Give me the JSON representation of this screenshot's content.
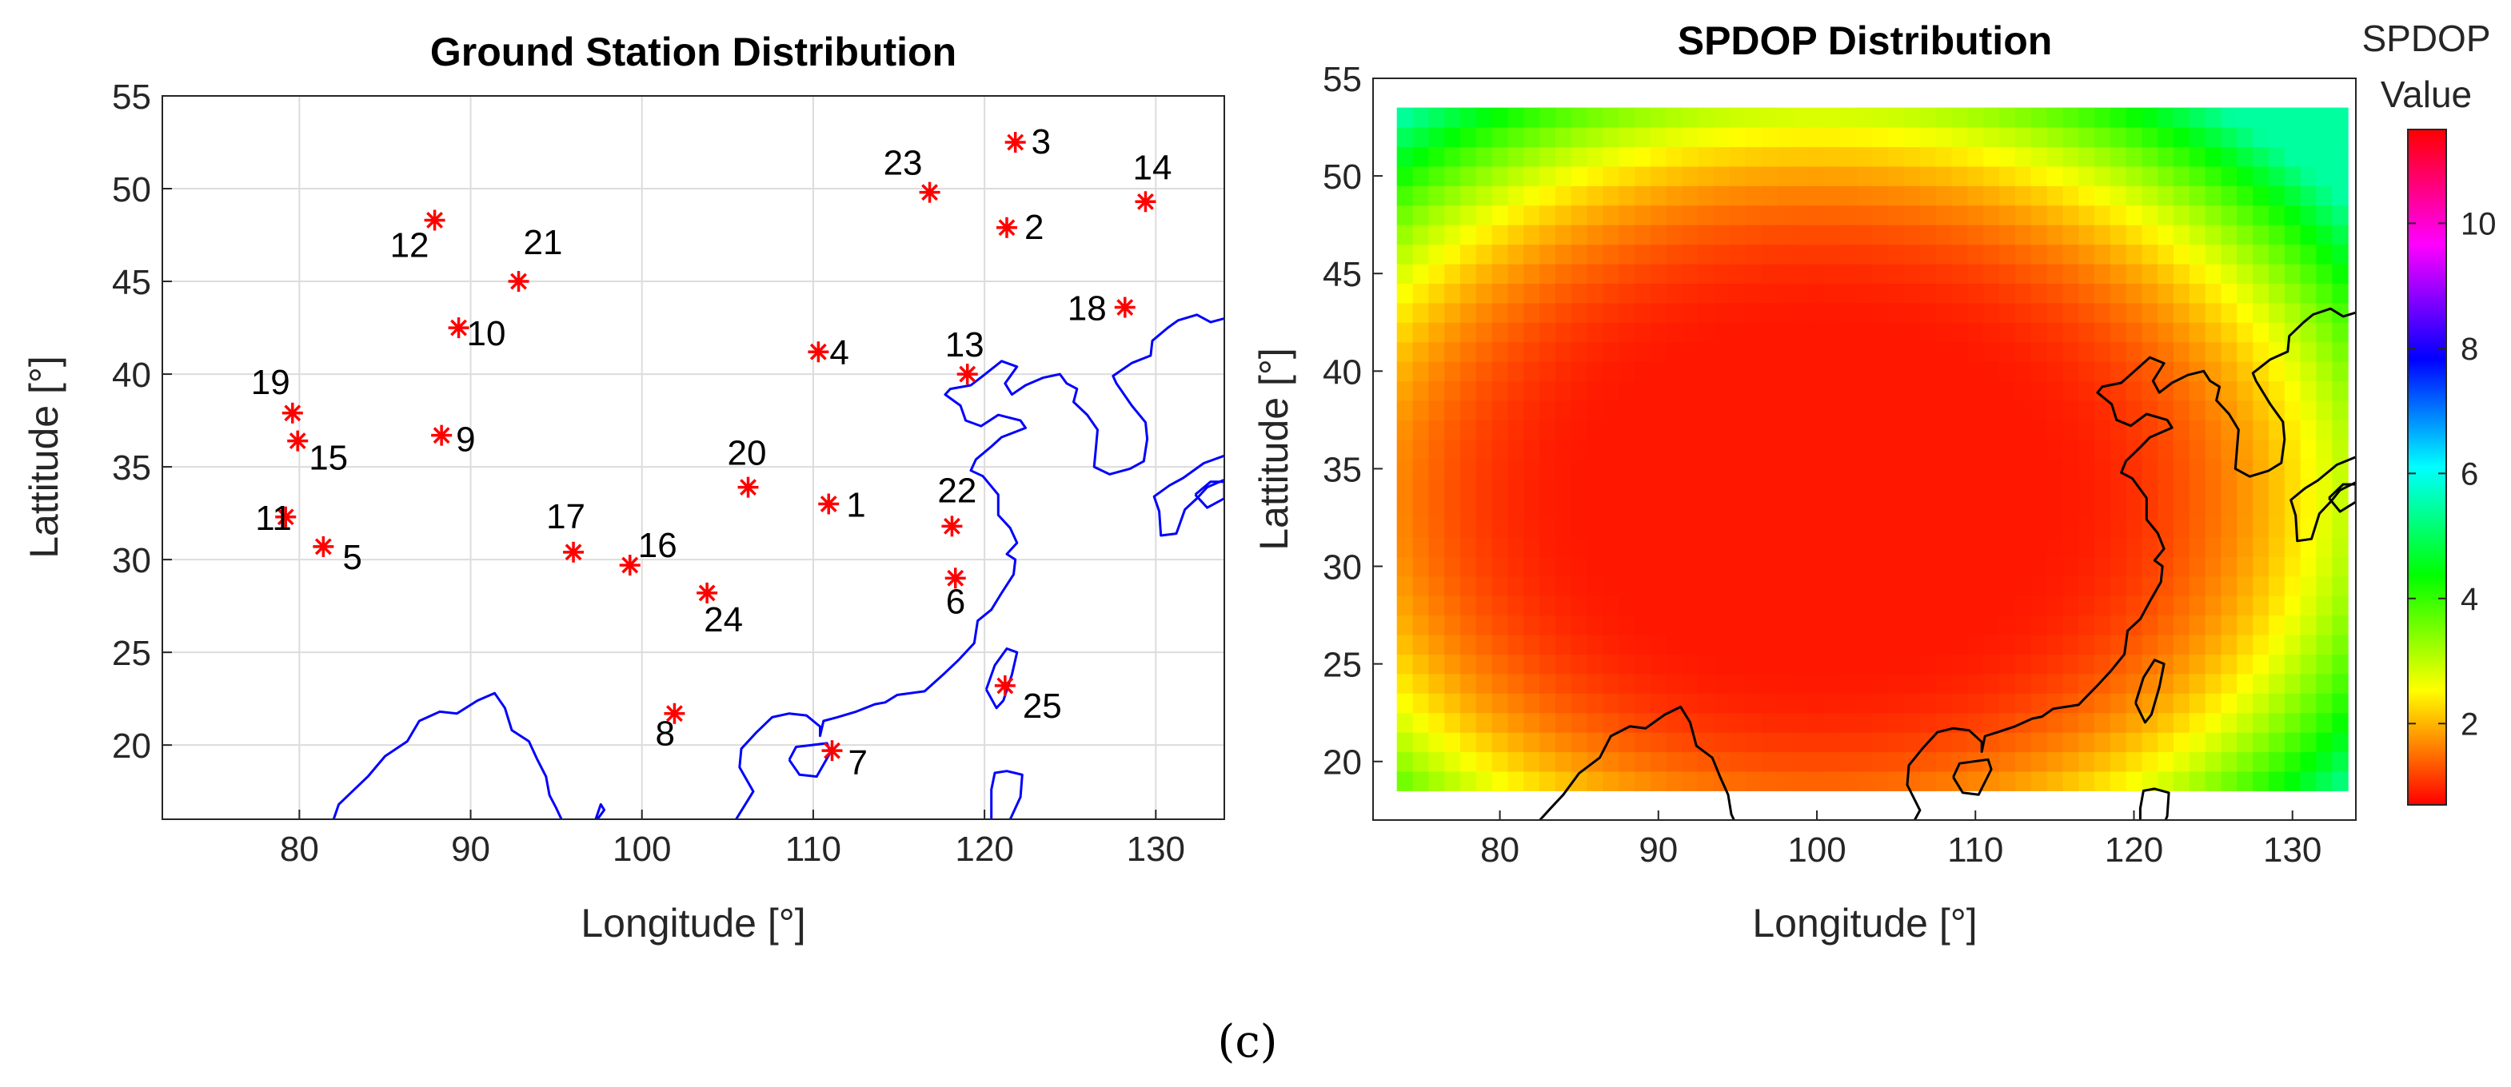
{
  "caption": "(c)",
  "chart_data": [
    {
      "type": "scatter",
      "title": "Ground Station Distribution",
      "xlabel": "Longitude [°]",
      "ylabel": "Lattitude [°]",
      "xlim": [
        72,
        134
      ],
      "ylim": [
        16,
        55
      ],
      "xticks": [
        80,
        90,
        100,
        110,
        120,
        130
      ],
      "yticks": [
        20,
        25,
        30,
        35,
        40,
        45,
        50,
        55
      ],
      "grid": true,
      "marker": "*",
      "marker_color": "#ff0000",
      "coastline_color": "#0000ff",
      "stations": [
        {
          "label": "1",
          "lon": 110.9,
          "lat": 33.0
        },
        {
          "label": "2",
          "lon": 121.3,
          "lat": 47.9
        },
        {
          "label": "3",
          "lon": 121.8,
          "lat": 52.5
        },
        {
          "label": "4",
          "lon": 110.3,
          "lat": 41.2
        },
        {
          "label": "5",
          "lon": 81.4,
          "lat": 30.7
        },
        {
          "label": "6",
          "lon": 118.3,
          "lat": 29.0
        },
        {
          "label": "7",
          "lon": 111.1,
          "lat": 19.7
        },
        {
          "label": "8",
          "lon": 101.9,
          "lat": 21.7
        },
        {
          "label": "9",
          "lon": 88.3,
          "lat": 36.7
        },
        {
          "label": "10",
          "lon": 89.3,
          "lat": 42.5
        },
        {
          "label": "11",
          "lon": 79.2,
          "lat": 32.3
        },
        {
          "label": "12",
          "lon": 87.9,
          "lat": 48.3
        },
        {
          "label": "13",
          "lon": 119.0,
          "lat": 40.0
        },
        {
          "label": "14",
          "lon": 129.4,
          "lat": 49.3
        },
        {
          "label": "15",
          "lon": 79.9,
          "lat": 36.4
        },
        {
          "label": "16",
          "lon": 99.3,
          "lat": 29.7
        },
        {
          "label": "17",
          "lon": 96.0,
          "lat": 30.4
        },
        {
          "label": "18",
          "lon": 128.2,
          "lat": 43.6
        },
        {
          "label": "19",
          "lon": 79.6,
          "lat": 37.9
        },
        {
          "label": "20",
          "lon": 106.2,
          "lat": 33.9
        },
        {
          "label": "21",
          "lon": 92.8,
          "lat": 45.0
        },
        {
          "label": "22",
          "lon": 118.1,
          "lat": 31.8
        },
        {
          "label": "23",
          "lon": 116.8,
          "lat": 49.8
        },
        {
          "label": "24",
          "lon": 103.8,
          "lat": 28.2
        },
        {
          "label": "25",
          "lon": 121.2,
          "lat": 23.2
        }
      ]
    },
    {
      "type": "heatmap",
      "title": "SPDOP Distribution",
      "xlabel": "Longitude [°]",
      "ylabel": "Lattitude [°]",
      "xlim": [
        72,
        134
      ],
      "ylim": [
        17,
        55
      ],
      "xticks": [
        80,
        90,
        100,
        110,
        120,
        130
      ],
      "yticks": [
        20,
        25,
        30,
        35,
        40,
        45,
        50,
        55
      ],
      "grid_extent": {
        "lon": [
          73.5,
          133.5
        ],
        "lat": [
          18.5,
          53.5
        ],
        "step": 1
      },
      "min_value": 0.9,
      "center_lon": 100.0,
      "center_lat": 33.5,
      "colormap": "hsv",
      "colorbar": {
        "title": "SPDOP Value",
        "range": [
          0.7,
          11.5
        ],
        "ticks": [
          2,
          4,
          6,
          8,
          10
        ]
      },
      "coastline_color": "#000000"
    }
  ]
}
